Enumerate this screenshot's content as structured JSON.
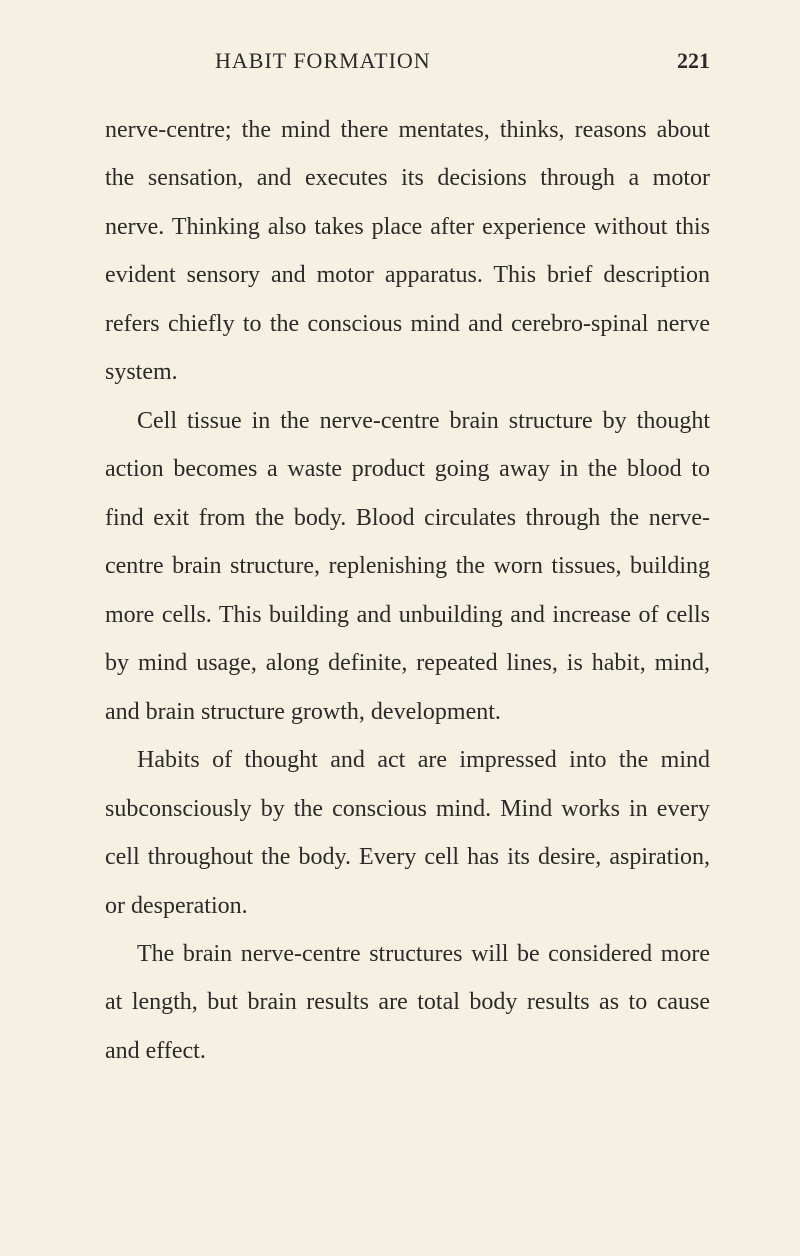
{
  "header": {
    "running_head": "HABIT FORMATION",
    "page_number": "221"
  },
  "paragraphs": {
    "p1": "nerve-centre; the mind there mentates, thinks, reasons about the sensation, and executes its decisions through a motor nerve. Thinking also takes place after experience without this evi­dent sensory and motor apparatus. This brief description refers chiefly to the conscious mind and cerebro-spinal nerve system.",
    "p2": "Cell tissue in the nerve-centre brain struc­ture by thought action becomes a waste prod­uct going away in the blood to find exit from the body. Blood circulates through the nerve-centre brain structure, replenishing the worn tissues, building more cells. This building and unbuilding and increase of cells by mind usage, along definite, repeated lines, is habit, mind, and brain structure growth, development.",
    "p3": "Habits of thought and act are impressed into the mind subconsciously by the conscious mind. Mind works in every cell throughout the body. Every cell has its desire, aspiration, or des­peration.",
    "p4": "The brain nerve-centre structures will be considered more at length, but brain results are total body results as to cause and effect."
  },
  "styling": {
    "background_color": "#f5f0e1",
    "text_color": "#2a2a2a",
    "body_fontsize": 24,
    "header_fontsize": 22,
    "line_height": 2.02,
    "font_family": "Century Schoolbook, Georgia, serif"
  }
}
